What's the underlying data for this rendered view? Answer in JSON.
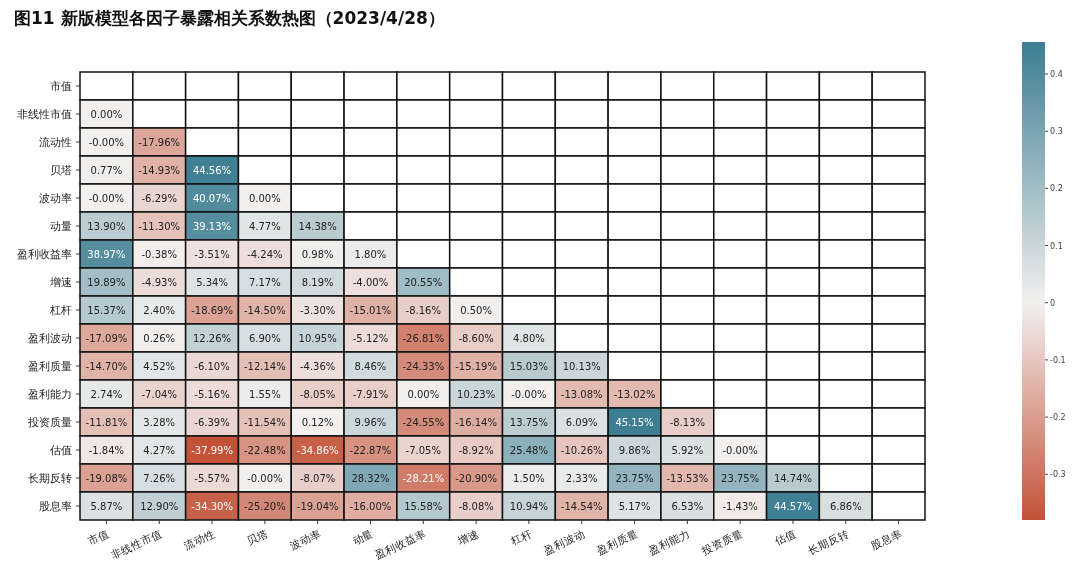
{
  "chart_data": {
    "type": "heatmap",
    "title": "图11 新版模型各因子暴露相关系数热图（2023/4/28）",
    "categories": [
      "市值",
      "非线性市值",
      "流动性",
      "贝塔",
      "波动率",
      "动量",
      "盈利收益率",
      "增速",
      "杠杆",
      "盈利波动",
      "盈利质量",
      "盈利能力",
      "投资质量",
      "估值",
      "长期反转",
      "股息率"
    ],
    "y_categories": [
      "市值",
      "非线性市值",
      "流动性",
      "贝塔",
      "波动率",
      "动量",
      "盈利收益率",
      "增速",
      "杠杆",
      "盈利波动",
      "盈利质量",
      "盈利能力",
      "投资质量",
      "估值",
      "长期反转",
      "股息率"
    ],
    "cells": [
      [
        null,
        null,
        null,
        null,
        null,
        null,
        null,
        null,
        null,
        null,
        null,
        null,
        null,
        null,
        null,
        null
      ],
      [
        0.0,
        null,
        null,
        null,
        null,
        null,
        null,
        null,
        null,
        null,
        null,
        null,
        null,
        null,
        null,
        null
      ],
      [
        -0.0,
        -0.1796,
        null,
        null,
        null,
        null,
        null,
        null,
        null,
        null,
        null,
        null,
        null,
        null,
        null,
        null
      ],
      [
        0.0077,
        -0.1493,
        0.4456,
        null,
        null,
        null,
        null,
        null,
        null,
        null,
        null,
        null,
        null,
        null,
        null,
        null
      ],
      [
        -0.0,
        -0.0629,
        0.4007,
        0.0,
        null,
        null,
        null,
        null,
        null,
        null,
        null,
        null,
        null,
        null,
        null,
        null
      ],
      [
        0.139,
        -0.113,
        0.3913,
        0.0477,
        0.1438,
        null,
        null,
        null,
        null,
        null,
        null,
        null,
        null,
        null,
        null,
        null
      ],
      [
        0.3897,
        -0.0038,
        -0.0351,
        -0.0424,
        0.0098,
        0.018,
        null,
        null,
        null,
        null,
        null,
        null,
        null,
        null,
        null,
        null
      ],
      [
        0.1989,
        -0.0493,
        0.0534,
        0.0717,
        0.0819,
        -0.04,
        0.2055,
        null,
        null,
        null,
        null,
        null,
        null,
        null,
        null,
        null
      ],
      [
        0.1537,
        0.024,
        -0.1869,
        -0.145,
        -0.033,
        -0.1501,
        -0.0816,
        0.005,
        null,
        null,
        null,
        null,
        null,
        null,
        null,
        null
      ],
      [
        -0.1709,
        0.0026,
        0.1226,
        0.069,
        0.1095,
        -0.0512,
        -0.2681,
        -0.086,
        0.048,
        null,
        null,
        null,
        null,
        null,
        null,
        null
      ],
      [
        -0.147,
        0.0452,
        -0.061,
        -0.1214,
        -0.0436,
        0.0846,
        -0.2433,
        -0.1519,
        0.1503,
        0.1013,
        null,
        null,
        null,
        null,
        null,
        null
      ],
      [
        0.0274,
        -0.0704,
        -0.0516,
        0.0155,
        -0.0805,
        -0.0791,
        0.0,
        0.1023,
        -0.0,
        -0.1308,
        -0.1302,
        null,
        null,
        null,
        null,
        null
      ],
      [
        -0.1181,
        0.0328,
        -0.0639,
        -0.1154,
        0.0012,
        0.0996,
        -0.2455,
        -0.1614,
        0.1375,
        0.0609,
        0.4515,
        -0.0813,
        null,
        null,
        null,
        null
      ],
      [
        -0.0184,
        0.0427,
        -0.3799,
        -0.2248,
        -0.3486,
        -0.2287,
        -0.0705,
        -0.0892,
        0.2548,
        -0.1026,
        0.0986,
        0.0592,
        -0.0,
        null,
        null,
        null
      ],
      [
        -0.1908,
        0.0726,
        -0.0557,
        -0.0,
        -0.0807,
        0.2832,
        -0.2821,
        -0.209,
        0.015,
        0.0233,
        0.2375,
        -0.1353,
        0.2375,
        0.1474,
        null,
        null
      ],
      [
        0.0587,
        0.129,
        -0.343,
        -0.252,
        -0.1904,
        -0.16,
        0.1558,
        -0.0808,
        0.1094,
        -0.1454,
        0.0517,
        0.0653,
        -0.0143,
        0.4457,
        0.0686,
        null
      ]
    ],
    "cell_labels": [
      [
        null,
        null,
        null,
        null,
        null,
        null,
        null,
        null,
        null,
        null,
        null,
        null,
        null,
        null,
        null,
        null
      ],
      [
        "0.00%",
        null,
        null,
        null,
        null,
        null,
        null,
        null,
        null,
        null,
        null,
        null,
        null,
        null,
        null,
        null
      ],
      [
        "-0.00%",
        "-17.96%",
        null,
        null,
        null,
        null,
        null,
        null,
        null,
        null,
        null,
        null,
        null,
        null,
        null,
        null
      ],
      [
        "0.77%",
        "-14.93%",
        "44.56%",
        null,
        null,
        null,
        null,
        null,
        null,
        null,
        null,
        null,
        null,
        null,
        null,
        null
      ],
      [
        "-0.00%",
        "-6.29%",
        "40.07%",
        "0.00%",
        null,
        null,
        null,
        null,
        null,
        null,
        null,
        null,
        null,
        null,
        null,
        null
      ],
      [
        "13.90%",
        "-11.30%",
        "39.13%",
        "4.77%",
        "14.38%",
        null,
        null,
        null,
        null,
        null,
        null,
        null,
        null,
        null,
        null,
        null
      ],
      [
        "38.97%",
        "-0.38%",
        "-3.51%",
        "-4.24%",
        "0.98%",
        "1.80%",
        null,
        null,
        null,
        null,
        null,
        null,
        null,
        null,
        null,
        null
      ],
      [
        "19.89%",
        "-4.93%",
        "5.34%",
        "7.17%",
        "8.19%",
        "-4.00%",
        "20.55%",
        null,
        null,
        null,
        null,
        null,
        null,
        null,
        null,
        null
      ],
      [
        "15.37%",
        "2.40%",
        "-18.69%",
        "-14.50%",
        "-3.30%",
        "-15.01%",
        "-8.16%",
        "0.50%",
        null,
        null,
        null,
        null,
        null,
        null,
        null,
        null
      ],
      [
        "-17.09%",
        "0.26%",
        "12.26%",
        "6.90%",
        "10.95%",
        "-5.12%",
        "-26.81%",
        "-8.60%",
        "4.80%",
        null,
        null,
        null,
        null,
        null,
        null,
        null
      ],
      [
        "-14.70%",
        "4.52%",
        "-6.10%",
        "-12.14%",
        "-4.36%",
        "8.46%",
        "-24.33%",
        "-15.19%",
        "15.03%",
        "10.13%",
        null,
        null,
        null,
        null,
        null,
        null
      ],
      [
        "2.74%",
        "-7.04%",
        "-5.16%",
        "1.55%",
        "-8.05%",
        "-7.91%",
        "0.00%",
        "10.23%",
        "-0.00%",
        "-13.08%",
        "-13.02%",
        null,
        null,
        null,
        null,
        null
      ],
      [
        "-11.81%",
        "3.28%",
        "-6.39%",
        "-11.54%",
        "0.12%",
        "9.96%",
        "-24.55%",
        "-16.14%",
        "13.75%",
        "6.09%",
        "45.15%",
        "-8.13%",
        null,
        null,
        null,
        null
      ],
      [
        "-1.84%",
        "4.27%",
        "-37.99%",
        "-22.48%",
        "-34.86%",
        "-22.87%",
        "-7.05%",
        "-8.92%",
        "25.48%",
        "-10.26%",
        "9.86%",
        "5.92%",
        "-0.00%",
        null,
        null,
        null
      ],
      [
        "-19.08%",
        "7.26%",
        "-5.57%",
        "-0.00%",
        "-8.07%",
        "28.32%",
        "-28.21%",
        "-20.90%",
        "1.50%",
        "2.33%",
        "23.75%",
        "-13.53%",
        "23.75%",
        "14.74%",
        null,
        null
      ],
      [
        "5.87%",
        "12.90%",
        "-34.30%",
        "-25.20%",
        "-19.04%",
        "-16.00%",
        "15.58%",
        "-8.08%",
        "10.94%",
        "-14.54%",
        "5.17%",
        "6.53%",
        "-1.43%",
        "44.57%",
        "6.86%",
        null
      ]
    ],
    "clim": [
      -0.38,
      0.456
    ],
    "cticks": [
      -0.3,
      -0.2,
      -0.1,
      0.0,
      0.1,
      0.2,
      0.3,
      0.4
    ]
  }
}
